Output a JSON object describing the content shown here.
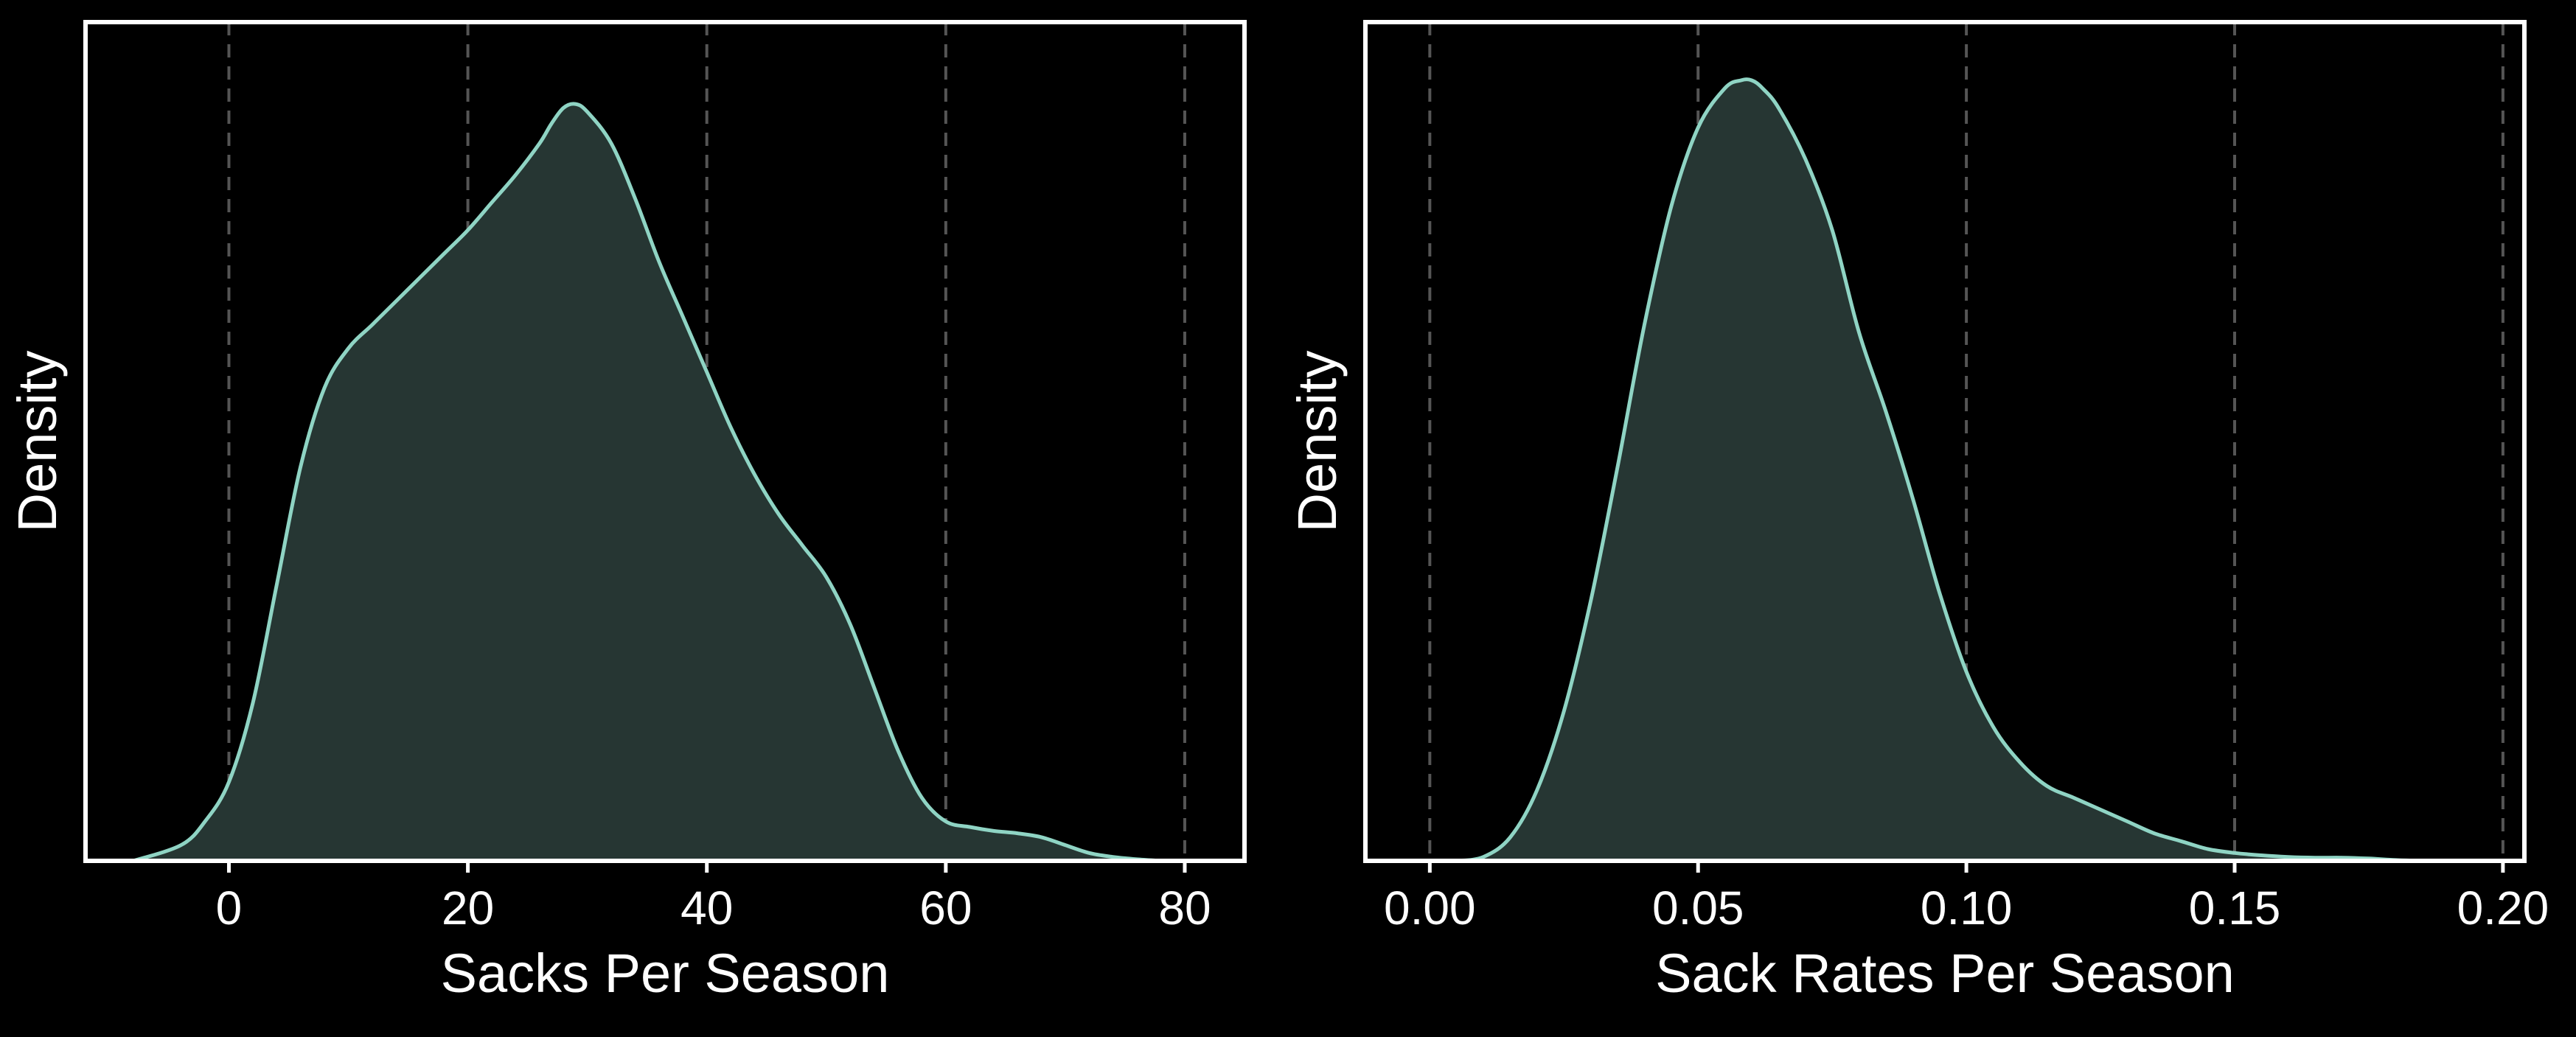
{
  "colors": {
    "background": "#000000",
    "line": "#8fd4c4",
    "fill": "#263633",
    "grid": "#555555",
    "frame": "#ffffff",
    "text": "#ffffff"
  },
  "chart_data": [
    {
      "type": "area",
      "title": "",
      "xlabel": "Sacks Per Season",
      "ylabel": "Density",
      "xlim": [
        -12,
        85
      ],
      "ylim": [
        0,
        1.0
      ],
      "xticks": [
        0,
        20,
        40,
        60,
        80
      ],
      "xtick_labels": [
        "0",
        "20",
        "40",
        "60",
        "80"
      ],
      "grid": "vertical dashed",
      "y_values_normalized": true,
      "x": [
        -8,
        -4,
        -2,
        0,
        2,
        4,
        6,
        8,
        10,
        12,
        14,
        16,
        18,
        20,
        22,
        24,
        26,
        27,
        28,
        29,
        30,
        32,
        34,
        36,
        38,
        40,
        42,
        44,
        46,
        48,
        50,
        52,
        54,
        56,
        58,
        60,
        62,
        64,
        66,
        68,
        70,
        72,
        74,
        76,
        78
      ],
      "y": [
        0.0,
        0.02,
        0.05,
        0.1,
        0.2,
        0.35,
        0.5,
        0.6,
        0.65,
        0.68,
        0.71,
        0.74,
        0.77,
        0.8,
        0.835,
        0.87,
        0.91,
        0.935,
        0.955,
        0.96,
        0.95,
        0.91,
        0.84,
        0.76,
        0.69,
        0.62,
        0.55,
        0.49,
        0.44,
        0.4,
        0.36,
        0.3,
        0.22,
        0.14,
        0.08,
        0.05,
        0.043,
        0.038,
        0.035,
        0.03,
        0.02,
        0.01,
        0.005,
        0.002,
        0.0
      ]
    },
    {
      "type": "area",
      "title": "",
      "xlabel": "Sack Rates Per Season",
      "ylabel": "Density",
      "xlim": [
        -0.012,
        0.204
      ],
      "ylim": [
        0,
        1.0
      ],
      "xticks": [
        0.0,
        0.05,
        0.1,
        0.15,
        0.2
      ],
      "xtick_labels": [
        "0.00",
        "0.05",
        "0.10",
        "0.15",
        "0.20"
      ],
      "grid": "vertical dashed",
      "y_values_normalized": true,
      "x": [
        0.005,
        0.01,
        0.015,
        0.02,
        0.025,
        0.03,
        0.035,
        0.04,
        0.045,
        0.05,
        0.055,
        0.058,
        0.06,
        0.062,
        0.065,
        0.07,
        0.075,
        0.08,
        0.085,
        0.09,
        0.095,
        0.1,
        0.105,
        0.11,
        0.115,
        0.12,
        0.125,
        0.13,
        0.135,
        0.14,
        0.145,
        0.15,
        0.155,
        0.16,
        0.165,
        0.17,
        0.175,
        0.18,
        0.185
      ],
      "y": [
        0.0,
        0.005,
        0.03,
        0.09,
        0.19,
        0.33,
        0.5,
        0.68,
        0.83,
        0.93,
        0.98,
        0.99,
        0.99,
        0.98,
        0.955,
        0.89,
        0.8,
        0.67,
        0.57,
        0.46,
        0.34,
        0.24,
        0.17,
        0.125,
        0.095,
        0.08,
        0.065,
        0.05,
        0.035,
        0.025,
        0.015,
        0.01,
        0.007,
        0.005,
        0.004,
        0.004,
        0.003,
        0.001,
        0.0
      ]
    }
  ]
}
